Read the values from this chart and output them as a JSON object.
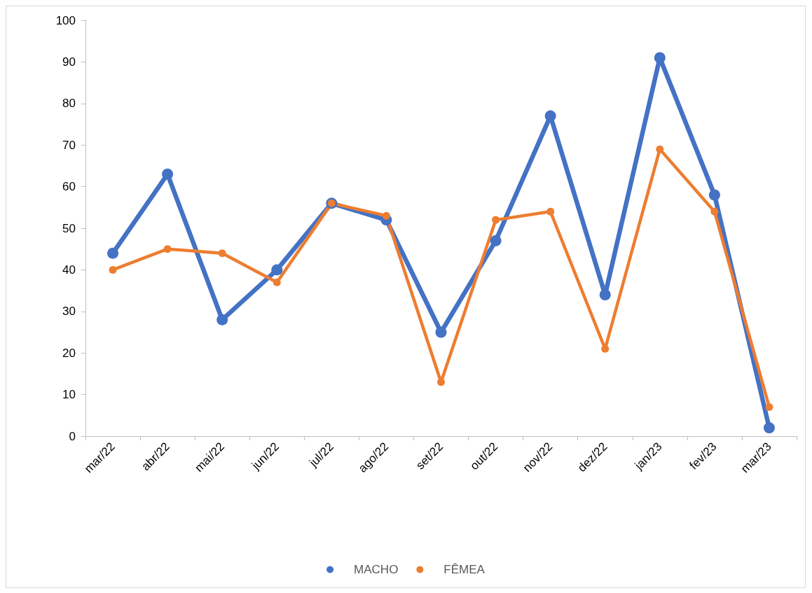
{
  "chart_data": {
    "type": "line",
    "categories": [
      "mar/22",
      "abr/22",
      "mai/22",
      "jun/22",
      "jul/22",
      "ago/22",
      "set/22",
      "out/22",
      "nov/22",
      "dez/22",
      "jan/23",
      "fev/23",
      "mar/23"
    ],
    "series": [
      {
        "name": "MACHO",
        "color": "#4472c4",
        "values": [
          44,
          63,
          28,
          40,
          56,
          52,
          25,
          47,
          77,
          34,
          91,
          58,
          2
        ]
      },
      {
        "name": "FÊMEA",
        "color": "#ed7d31",
        "values": [
          40,
          45,
          44,
          37,
          56,
          53,
          13,
          52,
          54,
          21,
          69,
          54,
          7
        ]
      }
    ],
    "ylim": [
      0,
      100
    ],
    "yticks": [
      0,
      10,
      20,
      30,
      40,
      50,
      60,
      70,
      80,
      90,
      100
    ],
    "grid": false,
    "legend": "bottom",
    "marker": "circle",
    "line_style": "solid"
  }
}
